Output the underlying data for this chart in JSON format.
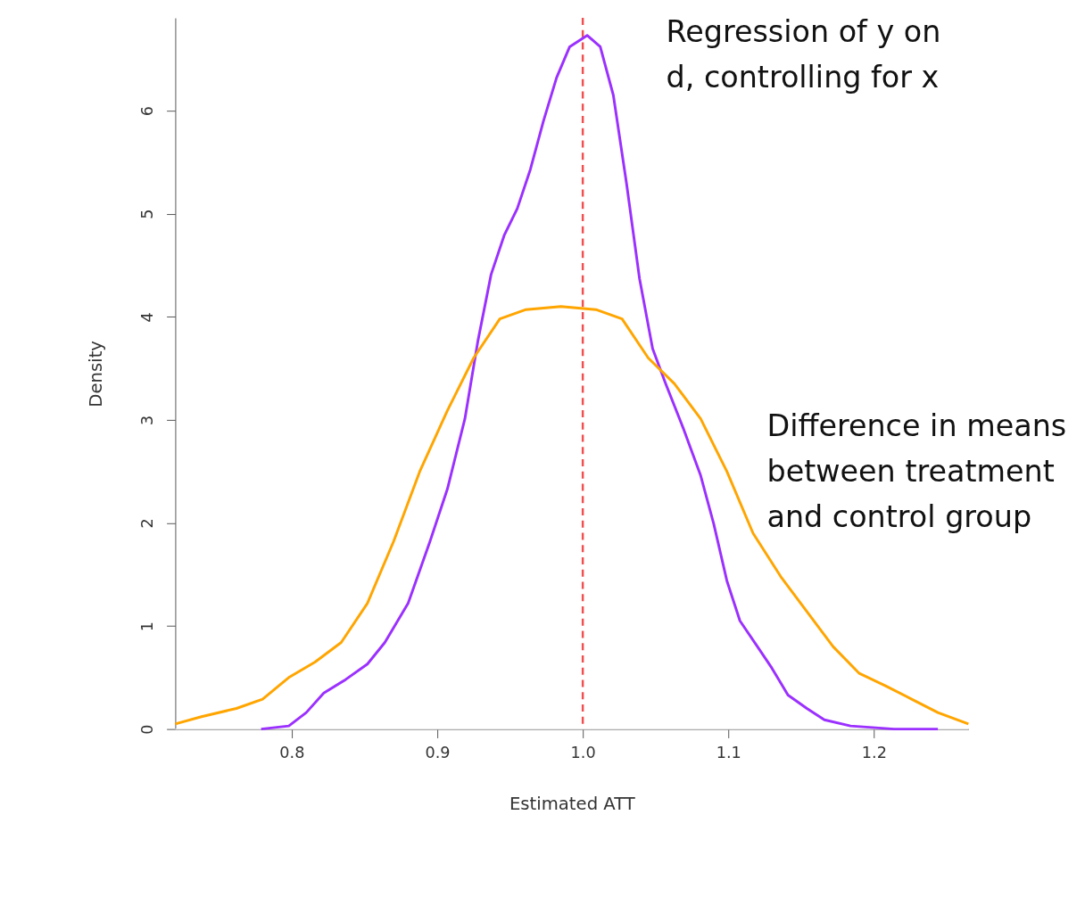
{
  "chart_data": {
    "type": "line",
    "xlabel": "Estimated ATT",
    "ylabel": "Density",
    "xlim": [
      0.72,
      1.265
    ],
    "ylim": [
      0,
      6.9
    ],
    "xticks": [
      {
        "value": 0.8,
        "label": "0.8"
      },
      {
        "value": 0.9,
        "label": "0.9"
      },
      {
        "value": 1.0,
        "label": "1.0"
      },
      {
        "value": 1.1,
        "label": "1.1"
      },
      {
        "value": 1.2,
        "label": "1.2"
      }
    ],
    "yticks": [
      0,
      1,
      2,
      3,
      4,
      5,
      6
    ],
    "grid": false,
    "marker": "none",
    "line_style": "solid",
    "ref_lines": [
      {
        "axis": "x",
        "value": 1.0,
        "color": "#f05050",
        "line_style": "dashed"
      },
      {
        "axis": "y",
        "value": 0,
        "color": "#e6e6e6",
        "line_style": "solid"
      }
    ],
    "series": [
      {
        "name": "Regression of y on d, controlling for x",
        "color": "#9b30ff",
        "x": [
          0.779,
          0.798,
          0.81,
          0.822,
          0.837,
          0.852,
          0.864,
          0.88,
          0.895,
          0.907,
          0.919,
          0.928,
          0.937,
          0.946,
          0.955,
          0.964,
          0.973,
          0.982,
          0.991,
          1.003,
          1.012,
          1.021,
          1.03,
          1.039,
          1.048,
          1.057,
          1.069,
          1.081,
          1.09,
          1.099,
          1.108,
          1.12,
          1.13,
          1.141,
          1.154,
          1.166,
          1.184,
          1.214,
          1.244
        ],
        "values": [
          0,
          0.03,
          0.16,
          0.35,
          0.48,
          0.63,
          0.84,
          1.22,
          1.82,
          2.33,
          3.01,
          3.77,
          4.41,
          4.79,
          5.05,
          5.43,
          5.9,
          6.32,
          6.62,
          6.73,
          6.62,
          6.15,
          5.3,
          4.37,
          3.69,
          3.35,
          2.92,
          2.46,
          1.99,
          1.44,
          1.05,
          0.8,
          0.59,
          0.33,
          0.2,
          0.09,
          0.03,
          0,
          0
        ]
      },
      {
        "name": "Difference in means between treatment and control group",
        "color": "#ffa500",
        "x": [
          0.72,
          0.738,
          0.762,
          0.78,
          0.798,
          0.816,
          0.834,
          0.852,
          0.87,
          0.888,
          0.907,
          0.925,
          0.943,
          0.961,
          0.985,
          1.009,
          1.027,
          1.045,
          1.063,
          1.081,
          1.099,
          1.117,
          1.136,
          1.154,
          1.172,
          1.19,
          1.208,
          1.226,
          1.244,
          1.265
        ],
        "values": [
          0.05,
          0.12,
          0.2,
          0.29,
          0.5,
          0.65,
          0.84,
          1.22,
          1.82,
          2.5,
          3.09,
          3.6,
          3.98,
          4.07,
          4.1,
          4.07,
          3.98,
          3.6,
          3.35,
          3.01,
          2.5,
          1.9,
          1.48,
          1.14,
          0.8,
          0.54,
          0.42,
          0.29,
          0.16,
          0.05
        ]
      }
    ]
  }
}
